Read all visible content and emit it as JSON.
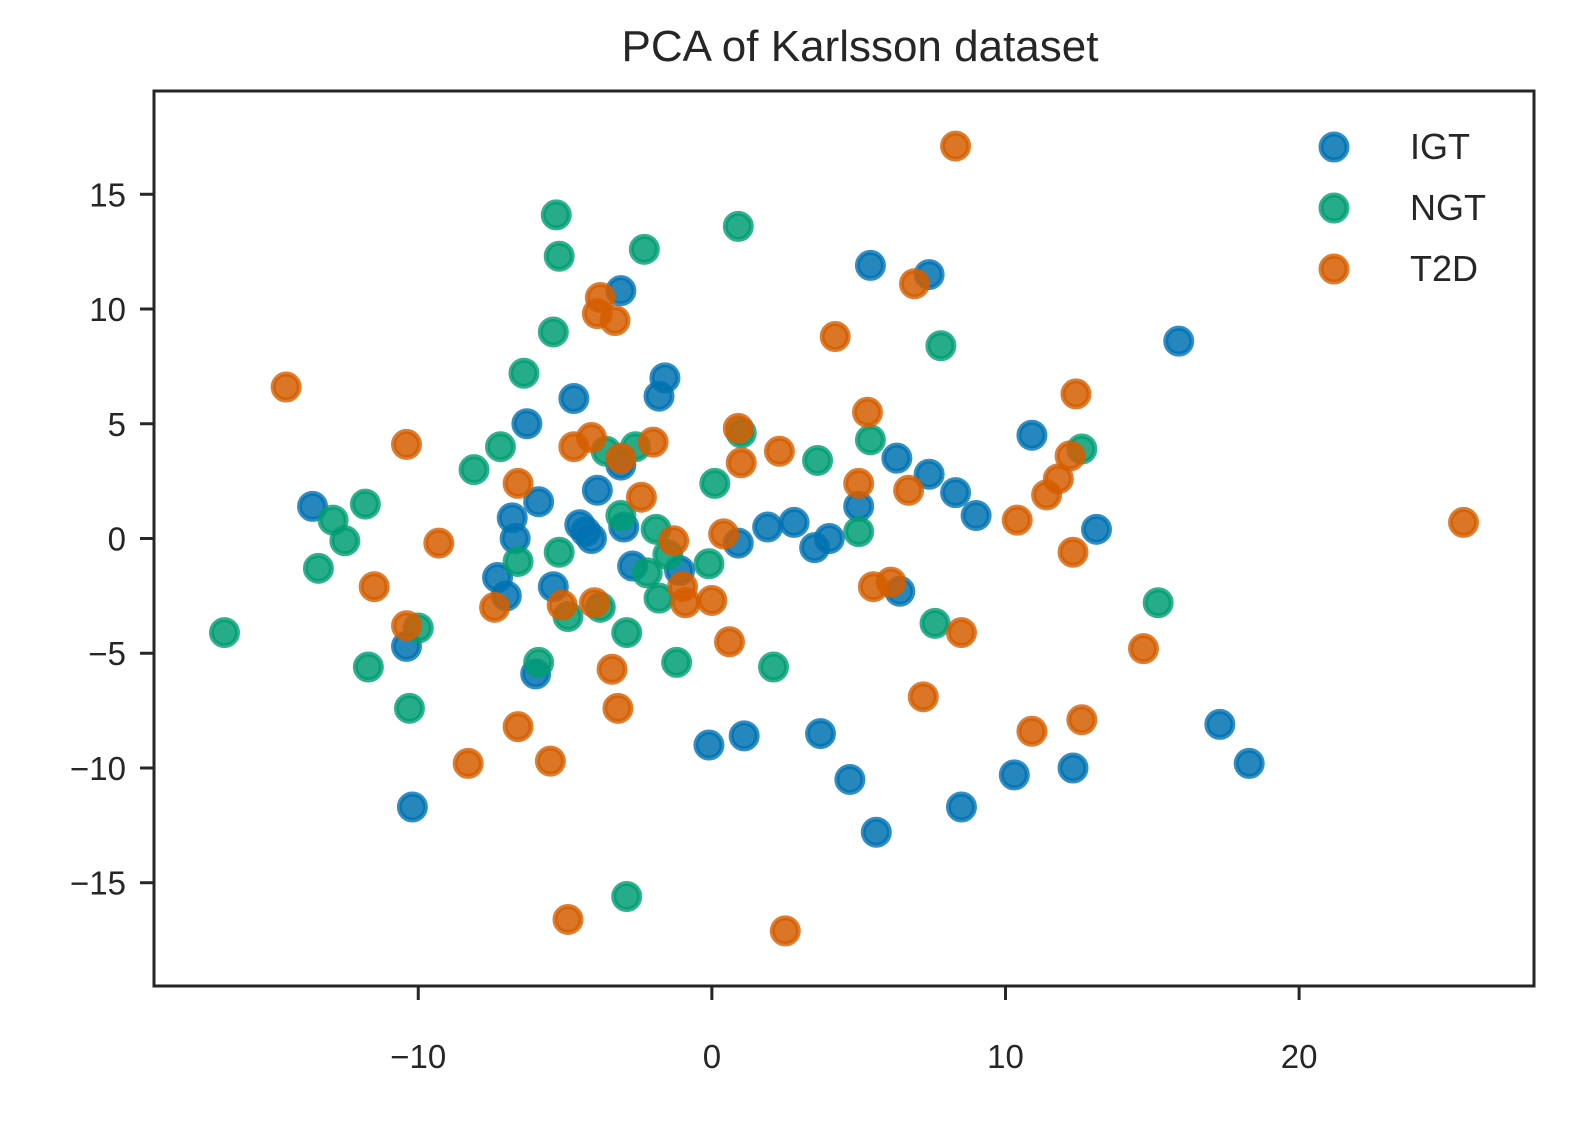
{
  "chart_data": {
    "type": "scatter",
    "title": "PCA of Karlsson dataset",
    "xlabel": "",
    "ylabel": "",
    "xlim": [
      -19,
      28
    ],
    "ylim": [
      -19.5,
      19.5
    ],
    "xticks": [
      -10,
      0,
      10,
      20
    ],
    "yticks": [
      -15,
      -10,
      -5,
      0,
      5,
      10,
      15
    ],
    "xtick_labels": [
      "−10",
      "0",
      "10",
      "20"
    ],
    "ytick_labels": [
      "−15",
      "−10",
      "−5",
      "0",
      "5",
      "10",
      "15"
    ],
    "grid": false,
    "legend_position": "top-right",
    "series": [
      {
        "name": "IGT",
        "color": "#0072b2",
        "points": [
          [
            -13.6,
            1.4
          ],
          [
            -10.4,
            -4.7
          ],
          [
            -10.2,
            -11.7
          ],
          [
            -7.3,
            -1.7
          ],
          [
            -7.0,
            -2.5
          ],
          [
            -6.8,
            0.9
          ],
          [
            -6.7,
            0.0
          ],
          [
            -6.3,
            5.0
          ],
          [
            -6.0,
            -5.9
          ],
          [
            -5.9,
            1.6
          ],
          [
            -5.4,
            -2.1
          ],
          [
            -4.7,
            6.1
          ],
          [
            -4.5,
            0.6
          ],
          [
            -4.3,
            0.3
          ],
          [
            -4.1,
            0.0
          ],
          [
            -3.9,
            2.1
          ],
          [
            -3.1,
            10.8
          ],
          [
            -3.1,
            3.2
          ],
          [
            -3.0,
            0.5
          ],
          [
            -2.7,
            -1.2
          ],
          [
            -1.8,
            6.2
          ],
          [
            -1.6,
            7.0
          ],
          [
            -1.1,
            -1.4
          ],
          [
            -0.1,
            -9.0
          ],
          [
            0.9,
            -0.2
          ],
          [
            1.1,
            -8.6
          ],
          [
            1.9,
            0.5
          ],
          [
            2.8,
            0.7
          ],
          [
            3.5,
            -0.4
          ],
          [
            3.7,
            -8.5
          ],
          [
            4.0,
            0.0
          ],
          [
            4.7,
            -10.5
          ],
          [
            5.0,
            1.4
          ],
          [
            5.4,
            11.9
          ],
          [
            5.6,
            -12.8
          ],
          [
            6.3,
            3.5
          ],
          [
            6.4,
            -2.3
          ],
          [
            7.4,
            2.8
          ],
          [
            7.4,
            11.5
          ],
          [
            8.3,
            2.0
          ],
          [
            8.5,
            -11.7
          ],
          [
            9.0,
            1.0
          ],
          [
            10.3,
            -10.3
          ],
          [
            10.9,
            4.5
          ],
          [
            12.3,
            -10.0
          ],
          [
            13.1,
            0.4
          ],
          [
            15.9,
            8.6
          ],
          [
            17.3,
            -8.1
          ],
          [
            18.3,
            -9.8
          ]
        ]
      },
      {
        "name": "NGT",
        "color": "#009e73",
        "points": [
          [
            -16.6,
            -4.1
          ],
          [
            -13.4,
            -1.3
          ],
          [
            -12.9,
            0.8
          ],
          [
            -12.5,
            -0.1
          ],
          [
            -11.8,
            1.5
          ],
          [
            -11.7,
            -5.6
          ],
          [
            -10.3,
            -7.4
          ],
          [
            -10.0,
            -3.9
          ],
          [
            -8.1,
            3.0
          ],
          [
            -7.2,
            4.0
          ],
          [
            -6.6,
            -1.0
          ],
          [
            -6.4,
            7.2
          ],
          [
            -5.9,
            -5.4
          ],
          [
            -5.4,
            9.0
          ],
          [
            -5.3,
            14.1
          ],
          [
            -5.2,
            12.3
          ],
          [
            -5.2,
            -0.6
          ],
          [
            -4.9,
            -3.4
          ],
          [
            -3.8,
            -3.0
          ],
          [
            -3.6,
            3.8
          ],
          [
            -3.1,
            1.0
          ],
          [
            -2.9,
            -4.1
          ],
          [
            -2.9,
            -15.6
          ],
          [
            -2.6,
            4.0
          ],
          [
            -2.3,
            12.6
          ],
          [
            -2.2,
            -1.5
          ],
          [
            -1.9,
            0.4
          ],
          [
            -1.8,
            -2.6
          ],
          [
            -1.5,
            -0.7
          ],
          [
            -1.2,
            -5.4
          ],
          [
            -0.1,
            -1.1
          ],
          [
            0.1,
            2.4
          ],
          [
            0.9,
            13.6
          ],
          [
            1.0,
            4.6
          ],
          [
            2.1,
            -5.6
          ],
          [
            3.6,
            3.4
          ],
          [
            5.0,
            0.3
          ],
          [
            5.4,
            4.3
          ],
          [
            7.6,
            -3.7
          ],
          [
            7.8,
            8.4
          ],
          [
            12.6,
            3.9
          ],
          [
            15.2,
            -2.8
          ]
        ]
      },
      {
        "name": "T2D",
        "color": "#d55e00",
        "points": [
          [
            -14.5,
            6.6
          ],
          [
            -11.5,
            -2.1
          ],
          [
            -10.4,
            -3.8
          ],
          [
            -10.4,
            4.1
          ],
          [
            -9.3,
            -0.2
          ],
          [
            -8.3,
            -9.8
          ],
          [
            -7.4,
            -3.0
          ],
          [
            -6.6,
            -8.2
          ],
          [
            -6.6,
            2.4
          ],
          [
            -5.5,
            -9.7
          ],
          [
            -5.1,
            -2.9
          ],
          [
            -4.9,
            -16.6
          ],
          [
            -4.7,
            4.0
          ],
          [
            -4.1,
            4.4
          ],
          [
            -4.0,
            -2.8
          ],
          [
            -3.8,
            10.5
          ],
          [
            -3.9,
            9.8
          ],
          [
            -3.4,
            -5.7
          ],
          [
            -3.2,
            -7.4
          ],
          [
            -3.1,
            3.5
          ],
          [
            -3.3,
            9.5
          ],
          [
            -2.4,
            1.8
          ],
          [
            -2.0,
            4.2
          ],
          [
            -1.3,
            -0.1
          ],
          [
            -1.0,
            -2.1
          ],
          [
            -0.9,
            -2.8
          ],
          [
            0.0,
            -2.7
          ],
          [
            0.4,
            0.2
          ],
          [
            0.6,
            -4.5
          ],
          [
            0.9,
            4.8
          ],
          [
            1.0,
            3.3
          ],
          [
            2.3,
            3.8
          ],
          [
            2.5,
            -17.1
          ],
          [
            4.2,
            8.8
          ],
          [
            5.0,
            2.4
          ],
          [
            5.3,
            5.5
          ],
          [
            5.5,
            -2.1
          ],
          [
            6.1,
            -1.9
          ],
          [
            6.7,
            2.1
          ],
          [
            6.9,
            11.1
          ],
          [
            7.2,
            -6.9
          ],
          [
            8.3,
            17.1
          ],
          [
            8.5,
            -4.1
          ],
          [
            10.4,
            0.8
          ],
          [
            10.9,
            -8.4
          ],
          [
            11.4,
            1.9
          ],
          [
            11.8,
            2.6
          ],
          [
            12.2,
            3.6
          ],
          [
            12.3,
            -0.6
          ],
          [
            12.4,
            6.3
          ],
          [
            12.6,
            -7.9
          ],
          [
            14.7,
            -4.8
          ],
          [
            25.6,
            0.7
          ]
        ]
      }
    ]
  }
}
